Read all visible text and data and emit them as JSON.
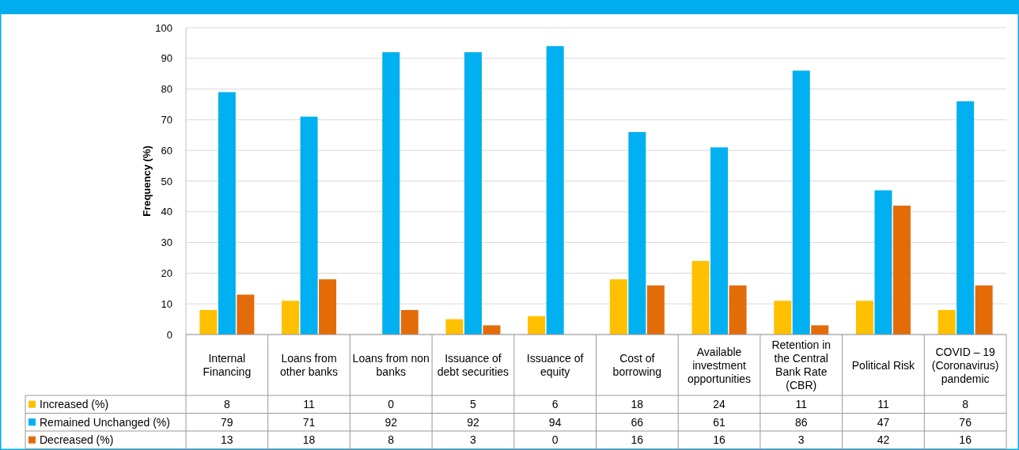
{
  "chart_data": {
    "type": "bar",
    "ylabel": "Frequency (%)",
    "categories": [
      "Internal Financing",
      "Loans from other banks",
      "Loans from non banks",
      "Issuance of debt securities",
      "Issuance of equity",
      "Cost of borrowing",
      "Available investment opportunities",
      "Retention in the Central Bank Rate (CBR)",
      "Political Risk",
      "COVID – 19 (Coronavirus) pandemic"
    ],
    "series": [
      {
        "name": "Increased (%)",
        "color": "#ffc000",
        "values": [
          8,
          11,
          0,
          5,
          6,
          18,
          24,
          11,
          11,
          8
        ]
      },
      {
        "name": "Remained Unchanged (%)",
        "color": "#00b0f0",
        "values": [
          79,
          71,
          92,
          92,
          94,
          66,
          61,
          86,
          47,
          76
        ]
      },
      {
        "name": "Decreased (%)",
        "color": "#e36c09",
        "values": [
          13,
          18,
          8,
          3,
          0,
          16,
          16,
          3,
          42,
          16
        ]
      }
    ],
    "ylim": [
      0,
      100
    ],
    "yticks": [
      0,
      10,
      20,
      30,
      40,
      50,
      60,
      70,
      80,
      90,
      100
    ],
    "grid": "y",
    "legend": "bottom",
    "data_labels": true
  }
}
